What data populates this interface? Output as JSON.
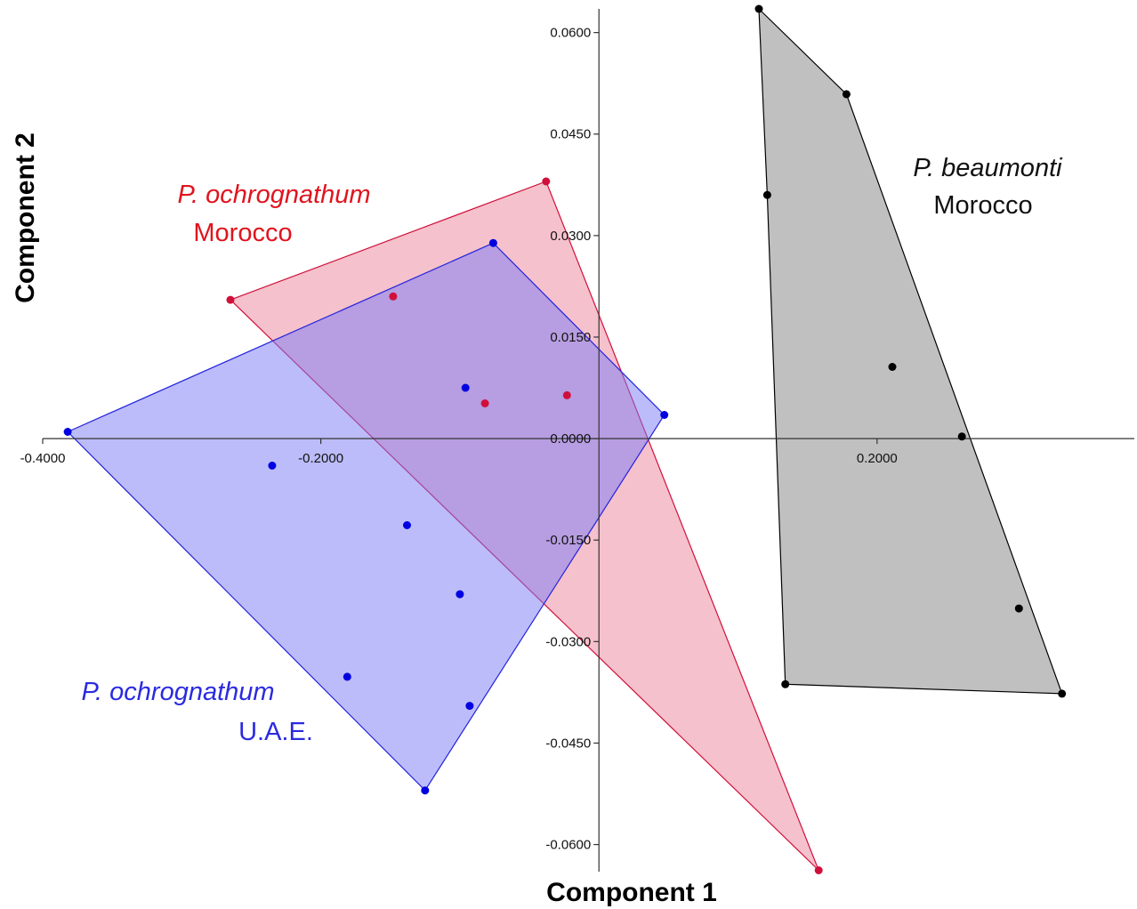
{
  "chart_data": {
    "type": "scatter",
    "title": "",
    "xlabel": "Component 1",
    "ylabel": "Component 2",
    "xlim": [
      -0.4,
      0.385
    ],
    "ylim": [
      -0.064,
      0.0635
    ],
    "x_ticks": [
      -0.4,
      -0.2,
      0.2
    ],
    "x_tick_labels": [
      "-0.4000",
      "-0.2000",
      "0.2000"
    ],
    "y_ticks": [
      0.06,
      0.045,
      0.03,
      0.015,
      0.0,
      -0.015,
      -0.03,
      -0.045,
      -0.06
    ],
    "y_tick_labels": [
      "0.0600",
      "0.0450",
      "0.0300",
      "0.0150",
      "0.0000",
      "-0.0150",
      "-0.0300",
      "-0.0450",
      "-0.0600"
    ],
    "grid": false,
    "convex_hulls": true,
    "series": [
      {
        "name": "P. ochrognathum Morocco",
        "label_species": "P. ochrognathum",
        "label_location": "Morocco",
        "color": "#d0103a",
        "line_color": "#d0103a",
        "fill_color": "#e8758d",
        "fill_opacity": 0.45,
        "points": [
          {
            "x": -0.265,
            "y": 0.0205
          },
          {
            "x": -0.148,
            "y": 0.021
          },
          {
            "x": -0.082,
            "y": 0.0052
          },
          {
            "x": -0.023,
            "y": 0.0064
          },
          {
            "x": -0.038,
            "y": 0.038
          },
          {
            "x": 0.158,
            "y": -0.0638
          }
        ],
        "hull": [
          {
            "x": -0.265,
            "y": 0.0205
          },
          {
            "x": -0.038,
            "y": 0.038
          },
          {
            "x": 0.158,
            "y": -0.0638
          }
        ]
      },
      {
        "name": "P. ochrognathum U.A.E.",
        "label_species": "P. ochrognathum",
        "label_location": "U.A.E.",
        "color": "#0000e0",
        "line_color": "#2222dd",
        "fill_color": "#7a7af5",
        "fill_opacity": 0.5,
        "points": [
          {
            "x": -0.382,
            "y": 0.001
          },
          {
            "x": -0.235,
            "y": -0.004
          },
          {
            "x": -0.096,
            "y": 0.0075
          },
          {
            "x": -0.076,
            "y": 0.0289
          },
          {
            "x": 0.047,
            "y": 0.0035
          },
          {
            "x": -0.138,
            "y": -0.0128
          },
          {
            "x": -0.1,
            "y": -0.023
          },
          {
            "x": -0.181,
            "y": -0.0352
          },
          {
            "x": -0.093,
            "y": -0.0395
          },
          {
            "x": -0.125,
            "y": -0.052
          }
        ],
        "hull": [
          {
            "x": -0.382,
            "y": 0.001
          },
          {
            "x": -0.076,
            "y": 0.0289
          },
          {
            "x": 0.047,
            "y": 0.0035
          },
          {
            "x": -0.125,
            "y": -0.052
          }
        ]
      },
      {
        "name": "P. beaumonti Morocco",
        "label_species": "P. beaumonti",
        "label_location": "Morocco",
        "color": "#000000",
        "line_color": "#000000",
        "fill_color": "#8c8c8c",
        "fill_opacity": 0.55,
        "points": [
          {
            "x": 0.115,
            "y": 0.0635
          },
          {
            "x": 0.178,
            "y": 0.0509
          },
          {
            "x": 0.121,
            "y": 0.036
          },
          {
            "x": 0.211,
            "y": 0.0106
          },
          {
            "x": 0.261,
            "y": 0.0003
          },
          {
            "x": 0.302,
            "y": -0.0251
          },
          {
            "x": 0.134,
            "y": -0.0363
          },
          {
            "x": 0.333,
            "y": -0.0377
          }
        ],
        "hull": [
          {
            "x": 0.115,
            "y": 0.0635
          },
          {
            "x": 0.178,
            "y": 0.0509
          },
          {
            "x": 0.333,
            "y": -0.0377
          },
          {
            "x": 0.134,
            "y": -0.0363
          },
          {
            "x": 0.121,
            "y": 0.036
          }
        ]
      }
    ]
  }
}
